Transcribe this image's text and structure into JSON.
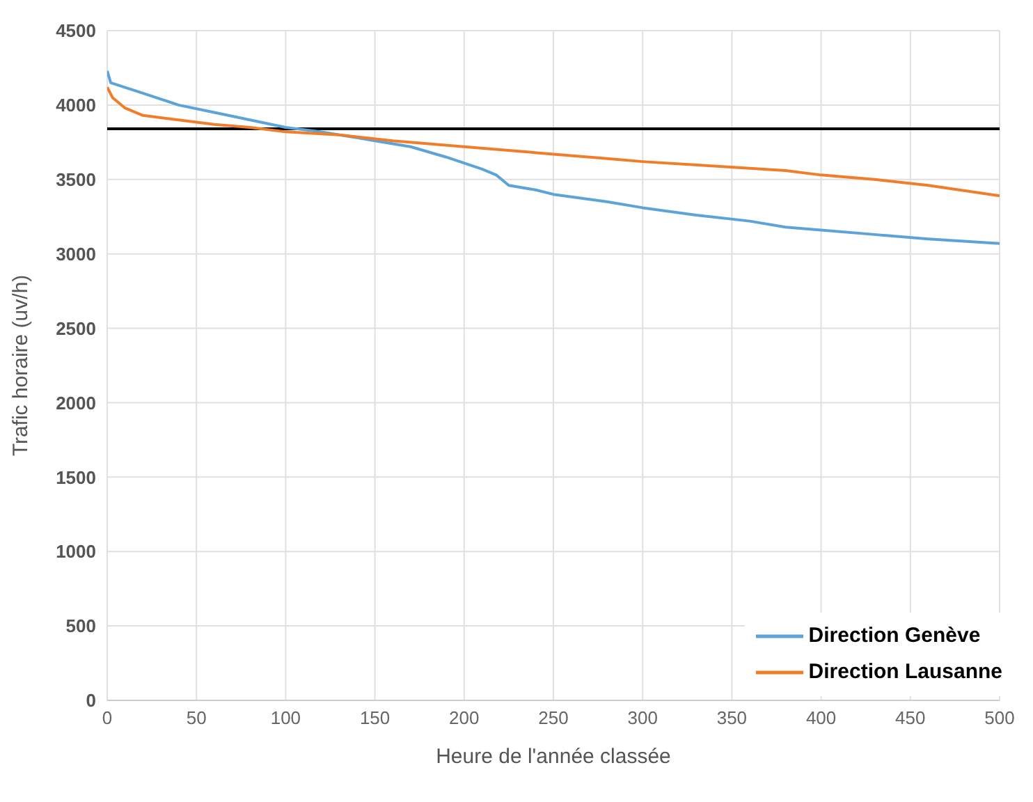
{
  "chart_data": {
    "type": "line",
    "xlabel": "Heure de l'année classée",
    "ylabel": "Trafic horaire (uv/h)",
    "xlim": [
      0,
      500
    ],
    "xticks": [
      0,
      50,
      100,
      150,
      200,
      250,
      300,
      350,
      400,
      450,
      500
    ],
    "ylim": [
      0,
      4500
    ],
    "yticks": [
      0,
      500,
      1000,
      1500,
      2000,
      2500,
      3000,
      3500,
      4000,
      4500
    ],
    "grid": true,
    "legend": "bottom right",
    "marker": "none",
    "line_style": "solid",
    "ref_lines": [
      {
        "axis": "y",
        "value": 3840,
        "color": "#000000"
      }
    ],
    "series": [
      {
        "name": "Direction Genève",
        "color": "#5ba3d9",
        "x": [
          0,
          2,
          20,
          40,
          60,
          80,
          100,
          120,
          150,
          170,
          190,
          210,
          218,
          225,
          240,
          250,
          280,
          300,
          330,
          360,
          380,
          400,
          430,
          460,
          500
        ],
        "values": [
          4230,
          4150,
          4080,
          4000,
          3950,
          3900,
          3850,
          3820,
          3760,
          3720,
          3650,
          3570,
          3530,
          3460,
          3430,
          3400,
          3350,
          3310,
          3260,
          3220,
          3180,
          3160,
          3130,
          3100,
          3070
        ]
      },
      {
        "name": "Direction Lausanne",
        "color": "#f07d2a",
        "x": [
          0,
          3,
          10,
          20,
          40,
          60,
          80,
          100,
          130,
          160,
          200,
          220,
          250,
          280,
          300,
          340,
          380,
          400,
          430,
          460,
          500
        ],
        "values": [
          4120,
          4050,
          3980,
          3930,
          3900,
          3870,
          3850,
          3820,
          3800,
          3760,
          3720,
          3700,
          3670,
          3640,
          3620,
          3590,
          3560,
          3530,
          3500,
          3460,
          3390
        ]
      }
    ]
  }
}
